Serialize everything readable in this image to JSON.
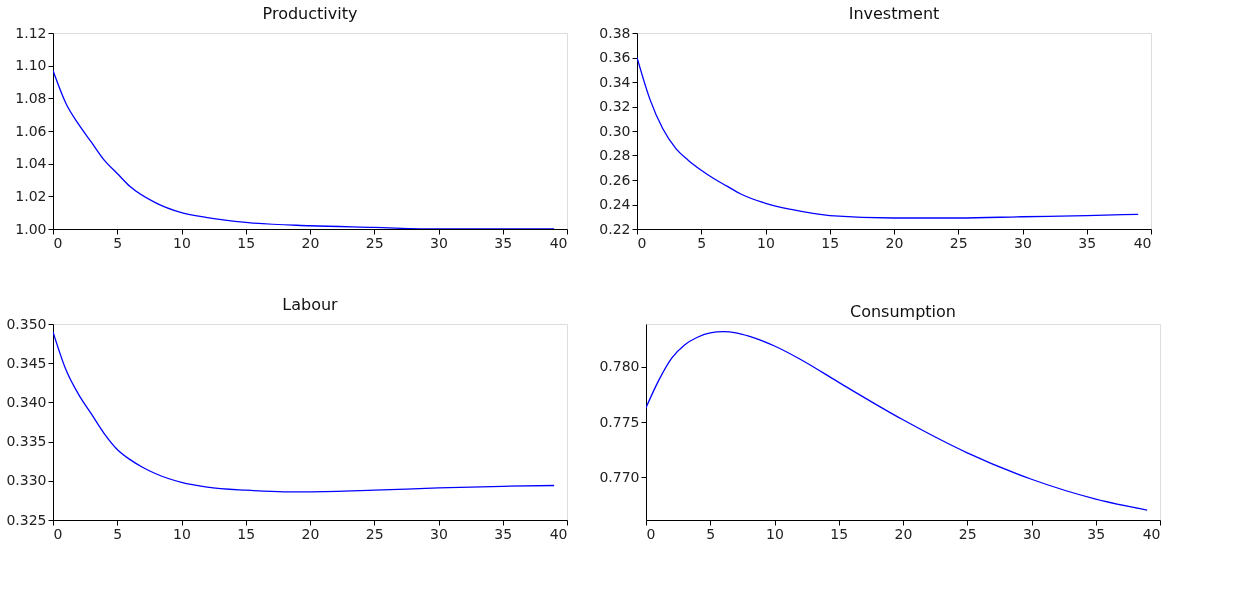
{
  "chart_data": [
    {
      "type": "line",
      "title": "Productivity",
      "xlim": [
        0,
        40
      ],
      "xticks": [
        0,
        5,
        10,
        15,
        20,
        25,
        30,
        35,
        40
      ],
      "ylim": [
        1.0,
        1.12
      ],
      "yticks": [
        {
          "value": 1.0,
          "label": "1.00"
        },
        {
          "value": 1.02,
          "label": "1.02"
        },
        {
          "value": 1.04,
          "label": "1.04"
        },
        {
          "value": 1.06,
          "label": "1.06"
        },
        {
          "value": 1.08,
          "label": "1.08"
        },
        {
          "value": 1.1,
          "label": "1.10"
        },
        {
          "value": 1.12,
          "label": "1.12"
        }
      ],
      "grid": false,
      "series": [
        {
          "color": "#0000ff",
          "x": [
            0,
            1,
            2,
            3,
            4,
            5,
            6,
            8,
            10,
            12,
            15,
            20,
            25,
            30,
            35,
            39
          ],
          "values": [
            1.097,
            1.077,
            1.064,
            1.053,
            1.042,
            1.034,
            1.026,
            1.016,
            1.01,
            1.007,
            1.004,
            1.002,
            1.001,
            1.0,
            1.0,
            1.0
          ]
        }
      ]
    },
    {
      "type": "line",
      "title": "Investment",
      "xlim": [
        0,
        40
      ],
      "xticks": [
        0,
        5,
        10,
        15,
        20,
        25,
        30,
        35,
        40
      ],
      "ylim": [
        0.22,
        0.38
      ],
      "yticks": [
        {
          "value": 0.22,
          "label": "0.22"
        },
        {
          "value": 0.24,
          "label": "0.24"
        },
        {
          "value": 0.26,
          "label": "0.26"
        },
        {
          "value": 0.28,
          "label": "0.28"
        },
        {
          "value": 0.3,
          "label": "0.30"
        },
        {
          "value": 0.32,
          "label": "0.32"
        },
        {
          "value": 0.34,
          "label": "0.34"
        },
        {
          "value": 0.36,
          "label": "0.36"
        },
        {
          "value": 0.38,
          "label": "0.38"
        }
      ],
      "grid": false,
      "series": [
        {
          "color": "#0000ff",
          "x": [
            0,
            1,
            2,
            3,
            4,
            5,
            6,
            7,
            8,
            10,
            12,
            15,
            20,
            25,
            30,
            35,
            39
          ],
          "values": [
            0.36,
            0.326,
            0.302,
            0.286,
            0.276,
            0.268,
            0.261,
            0.255,
            0.249,
            0.241,
            0.236,
            0.231,
            0.229,
            0.229,
            0.23,
            0.231,
            0.232
          ]
        }
      ]
    },
    {
      "type": "line",
      "title": "Labour",
      "xlim": [
        0,
        40
      ],
      "xticks": [
        0,
        5,
        10,
        15,
        20,
        25,
        30,
        35,
        40
      ],
      "ylim": [
        0.325,
        0.35
      ],
      "yticks": [
        {
          "value": 0.325,
          "label": "0.325"
        },
        {
          "value": 0.33,
          "label": "0.330"
        },
        {
          "value": 0.335,
          "label": "0.335"
        },
        {
          "value": 0.34,
          "label": "0.340"
        },
        {
          "value": 0.345,
          "label": "0.345"
        },
        {
          "value": 0.35,
          "label": "0.350"
        }
      ],
      "grid": false,
      "series": [
        {
          "color": "#0000ff",
          "x": [
            0,
            1,
            2,
            3,
            4,
            5,
            6,
            7,
            8,
            10,
            12,
            15,
            18,
            20,
            25,
            30,
            35,
            39
          ],
          "values": [
            0.349,
            0.3442,
            0.341,
            0.3385,
            0.336,
            0.334,
            0.3327,
            0.3317,
            0.3309,
            0.3298,
            0.3292,
            0.3288,
            0.3286,
            0.3286,
            0.3288,
            0.3291,
            0.3293,
            0.3294
          ]
        }
      ]
    },
    {
      "type": "line",
      "title": "Consumption",
      "xlim": [
        0,
        40
      ],
      "xticks": [
        0,
        5,
        10,
        15,
        20,
        25,
        30,
        35,
        40
      ],
      "ylim": [
        0.7661,
        0.7839
      ],
      "yticks": [
        {
          "value": 0.77,
          "label": "0.770"
        },
        {
          "value": 0.775,
          "label": "0.775"
        },
        {
          "value": 0.78,
          "label": "0.780"
        }
      ],
      "grid": false,
      "series": [
        {
          "color": "#0000ff",
          "x": [
            0,
            1,
            2,
            3,
            4,
            5,
            6,
            7,
            8,
            10,
            12,
            15,
            20,
            25,
            30,
            35,
            39
          ],
          "values": [
            0.7763,
            0.7788,
            0.7808,
            0.782,
            0.7827,
            0.7831,
            0.7832,
            0.7831,
            0.7828,
            0.7819,
            0.7807,
            0.7786,
            0.7752,
            0.7722,
            0.7698,
            0.768,
            0.767
          ]
        }
      ]
    }
  ]
}
